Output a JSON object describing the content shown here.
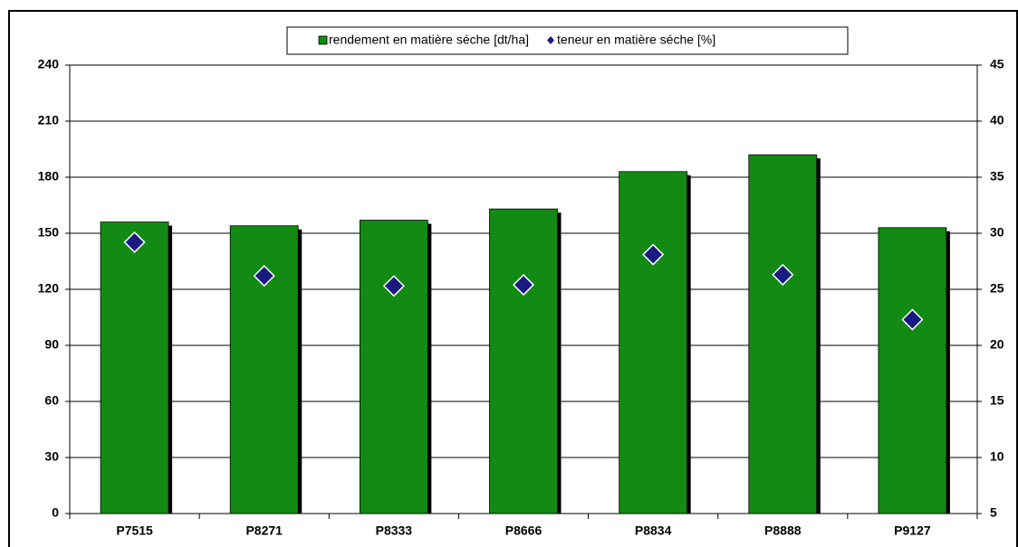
{
  "chart_data": {
    "type": "bar",
    "categories": [
      "P7515",
      "P8271",
      "P8333",
      "P8666",
      "P8834",
      "P8888",
      "P9127"
    ],
    "series": [
      {
        "name": "rendement en matière séche [dt/ha]",
        "type": "bar",
        "color": "#138a13",
        "values": [
          156,
          154,
          157,
          163,
          183,
          192,
          153
        ]
      },
      {
        "name": "teneur en matière séche [%]",
        "type": "scatter",
        "axis": "y2",
        "color": "#1a1a80",
        "values": [
          29.2,
          26.2,
          25.3,
          25.4,
          28.1,
          26.3,
          22.3
        ]
      }
    ],
    "ylim": [
      0,
      240
    ],
    "yticks": [
      0,
      30,
      60,
      90,
      120,
      150,
      180,
      210,
      240
    ],
    "y2lim": [
      5,
      45
    ],
    "y2ticks": [
      5,
      10,
      15,
      20,
      25,
      30,
      35,
      40,
      45
    ],
    "grid": true,
    "legend": "top"
  }
}
